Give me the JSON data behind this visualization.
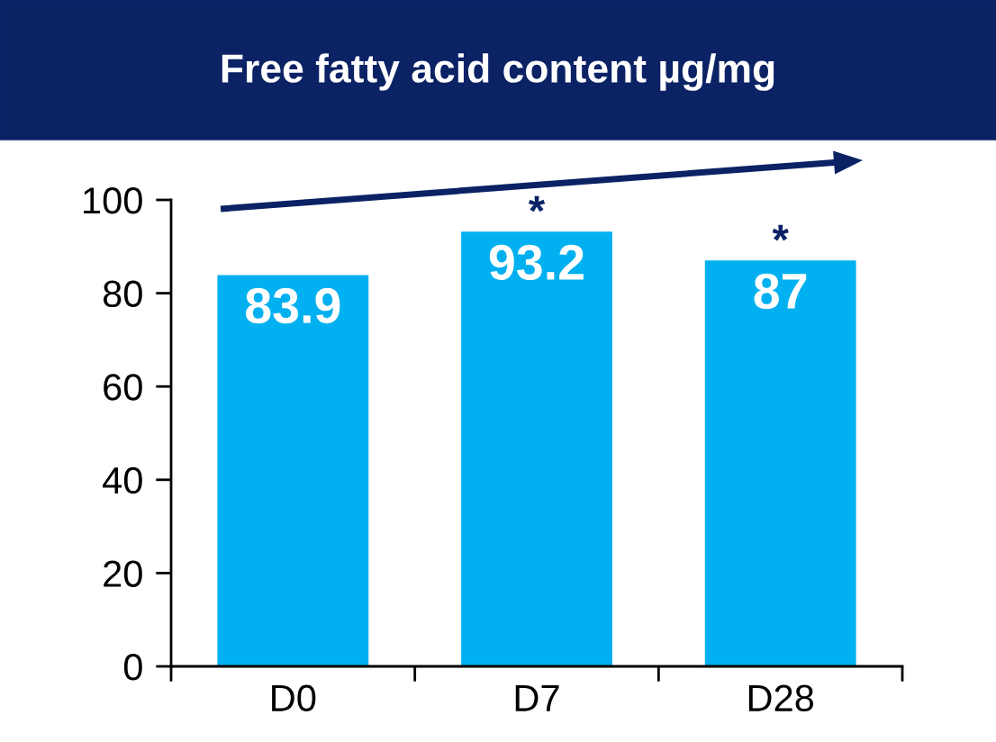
{
  "chart_data": {
    "type": "bar",
    "title": "Free fatty acid content µg/mg",
    "categories": [
      "D0",
      "D7",
      "D28"
    ],
    "values": [
      83.9,
      93.2,
      87
    ],
    "color": "#00b0f0",
    "data_labels": true,
    "ylim": [
      0,
      100
    ],
    "yticks": [
      0,
      20,
      40,
      60,
      80,
      100
    ],
    "grid": false,
    "annotations": [
      {
        "text": "*",
        "x": "D7",
        "y": 93.2
      },
      {
        "text": "*",
        "x": "D28",
        "y": 87
      }
    ]
  }
}
